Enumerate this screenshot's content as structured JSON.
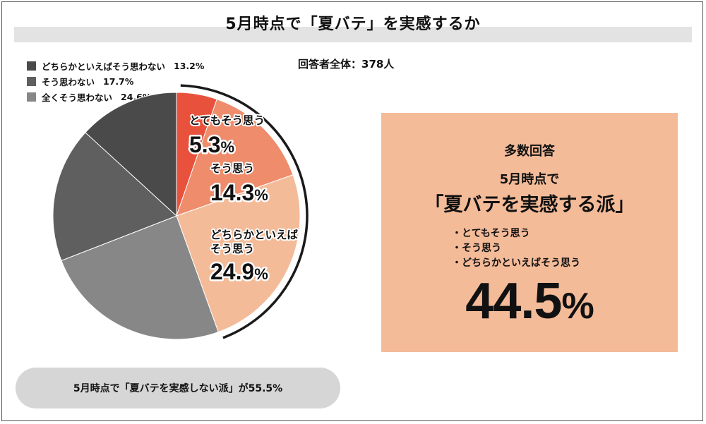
{
  "title": "5月時点で「夏バテ」を実感するか",
  "total_label": "回答者全体：378人",
  "chart_data": {
    "type": "pie",
    "title": "5月時点で「夏バテ」を実感するか",
    "unit": "%",
    "legend_placement": "top-left",
    "slices": [
      {
        "label": "とてもそう思う",
        "value": 5.3,
        "color": "#e8523c"
      },
      {
        "label": "そう思う",
        "value": 14.3,
        "color": "#ee8c6c"
      },
      {
        "label": "どちらかといえばそう思う",
        "value": 24.9,
        "color": "#f4bb99"
      },
      {
        "label": "全くそう思わない",
        "value": 24.6,
        "color": "#878787"
      },
      {
        "label": "そう思わない",
        "value": 17.7,
        "color": "#5f5f5f"
      },
      {
        "label": "どちらかといえばそう思わない",
        "value": 13.2,
        "color": "#4a4a4a"
      }
    ]
  },
  "legend": [
    {
      "label": "どちらかといえばそう思わない",
      "pct": "13.2%",
      "color": "#4a4a4a"
    },
    {
      "label": "そう思わない",
      "pct": "17.7%",
      "color": "#5f5f5f"
    },
    {
      "label": "全くそう思わない",
      "pct": "24.6%",
      "color": "#878787"
    }
  ],
  "slice_labels": [
    {
      "lines": [
        "とてもそう思う"
      ],
      "value": "5.3",
      "unit": "%"
    },
    {
      "lines": [
        "そう思う"
      ],
      "value": "14.3",
      "unit": "%"
    },
    {
      "lines": [
        "どちらかといえば",
        "そう思う"
      ],
      "value": "24.9",
      "unit": "%"
    }
  ],
  "panel": {
    "heading": "多数回答",
    "subheading": "5月時点で",
    "group_label": "「夏バテを実感する派」",
    "items": [
      "とてもそう思う",
      "そう思う",
      "どちらかといえばそう思う"
    ],
    "total_value": "44.5",
    "total_unit": "%",
    "color": "#f4bb99"
  },
  "footer_pill": "5月時点で「夏バテを実感しない派」が55.5%"
}
